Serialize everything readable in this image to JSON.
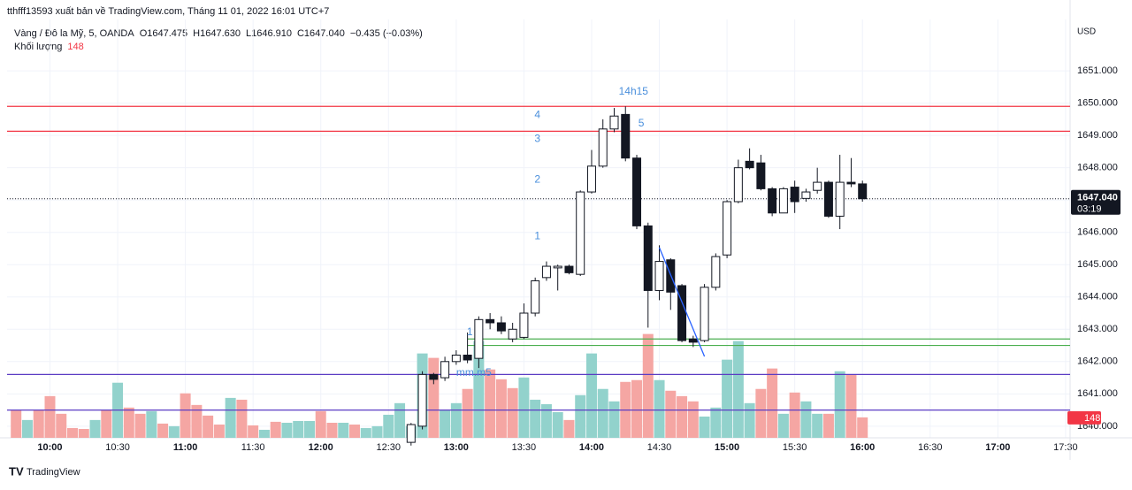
{
  "header": {
    "publisher": "tthfff13593 xuất bản về TradingView.com, Tháng 11 01, 2022 16:01 UTC+7",
    "symbol": "Vàng / Đô la Mỹ, 5, OANDA",
    "open": "O1647.475",
    "high": "H1647.630",
    "low": "L1646.910",
    "close": "C1647.040",
    "change": "−0.435 (−0.03%)",
    "volume_name": "Khối lượng",
    "currency": "USD"
  },
  "footer": {
    "brand": "TradingView"
  },
  "chart_data": {
    "type": "candlestick",
    "xlim": [
      "09:41",
      "17:32"
    ],
    "xticks": [
      "10:00",
      "10:30",
      "11:00",
      "11:30",
      "12:00",
      "12:30",
      "13:00",
      "13:30",
      "14:00",
      "14:30",
      "15:00",
      "15:30",
      "16:00",
      "16:30",
      "17:00",
      "17:30"
    ],
    "ylim": [
      1639.64,
      1652.59
    ],
    "yticks": [
      {
        "value": 1640,
        "label": "1640.000"
      },
      {
        "value": 1641,
        "label": "1641.000"
      },
      {
        "value": 1642,
        "label": "1642.000"
      },
      {
        "value": 1643,
        "label": "1643.000"
      },
      {
        "value": 1644,
        "label": "1644.000"
      },
      {
        "value": 1645,
        "label": "1645.000"
      },
      {
        "value": 1646,
        "label": "1646.000"
      },
      {
        "value": 1647,
        "label": "1647.000"
      },
      {
        "value": 1648,
        "label": "1648.000"
      },
      {
        "value": 1649,
        "label": "1649.000"
      },
      {
        "value": 1650,
        "label": "1650.000"
      },
      {
        "value": 1651,
        "label": "1651.000"
      }
    ],
    "grid": true,
    "up_color": "#ffffff",
    "down_color": "#131722",
    "wick_color": "#131722",
    "candles": {
      "x": [
        "12:40",
        "12:45",
        "12:50",
        "12:55",
        "13:00",
        "13:05",
        "13:10",
        "13:15",
        "13:20",
        "13:25",
        "13:30",
        "13:35",
        "13:40",
        "13:45",
        "13:50",
        "13:55",
        "14:00",
        "14:05",
        "14:10",
        "14:15",
        "14:20",
        "14:25",
        "14:30",
        "14:35",
        "14:40",
        "14:45",
        "14:50",
        "14:55",
        "15:00",
        "15:05",
        "15:10",
        "15:15",
        "15:20",
        "15:25",
        "15:30",
        "15:35",
        "15:40",
        "15:45",
        "15:50",
        "15:55",
        "16:00"
      ],
      "open": [
        1639.5,
        1640.0,
        1641.6,
        1641.5,
        1642.0,
        1642.2,
        1642.1,
        1643.3,
        1643.2,
        1642.7,
        1642.75,
        1643.5,
        1644.6,
        1644.9,
        1644.95,
        1644.7,
        1647.25,
        1648.05,
        1649.2,
        1649.65,
        1648.3,
        1646.2,
        1644.2,
        1645.15,
        1644.35,
        1642.7,
        1642.65,
        1644.3,
        1645.3,
        1646.95,
        1648.2,
        1648.15,
        1647.35,
        1646.6,
        1647.4,
        1647.05,
        1647.3,
        1647.55,
        1646.5,
        1647.55,
        1647.5
      ],
      "high": [
        1640.1,
        1641.7,
        1641.65,
        1642.15,
        1642.35,
        1642.9,
        1643.4,
        1643.5,
        1643.4,
        1643.2,
        1643.8,
        1644.6,
        1645.1,
        1645.0,
        1645.0,
        1647.3,
        1648.55,
        1649.5,
        1649.85,
        1649.9,
        1648.4,
        1646.3,
        1645.6,
        1645.2,
        1644.4,
        1642.8,
        1644.4,
        1645.35,
        1647.0,
        1648.25,
        1648.6,
        1648.4,
        1647.4,
        1647.4,
        1647.6,
        1647.35,
        1648.0,
        1647.6,
        1648.4,
        1648.3,
        1647.6
      ],
      "low": [
        1639.4,
        1639.9,
        1641.3,
        1641.4,
        1641.9,
        1641.95,
        1641.8,
        1643.0,
        1642.85,
        1642.6,
        1642.7,
        1643.4,
        1644.5,
        1644.2,
        1644.7,
        1644.65,
        1647.2,
        1648.0,
        1649.1,
        1648.2,
        1646.1,
        1643.05,
        1643.9,
        1643.6,
        1642.6,
        1642.45,
        1642.6,
        1644.2,
        1645.2,
        1646.9,
        1647.95,
        1647.3,
        1646.5,
        1646.6,
        1646.6,
        1646.95,
        1647.2,
        1646.45,
        1646.1,
        1647.4,
        1646.95
      ],
      "close": [
        1640.05,
        1641.6,
        1641.45,
        1642.0,
        1642.2,
        1642.05,
        1643.3,
        1643.2,
        1642.95,
        1643.0,
        1643.5,
        1644.5,
        1644.95,
        1644.95,
        1644.75,
        1647.25,
        1648.05,
        1649.2,
        1649.6,
        1648.3,
        1646.2,
        1644.2,
        1645.1,
        1644.15,
        1642.65,
        1642.6,
        1644.3,
        1645.25,
        1646.95,
        1648.0,
        1648.0,
        1647.35,
        1646.6,
        1647.35,
        1646.95,
        1647.25,
        1647.55,
        1646.5,
        1647.55,
        1647.5,
        1647.04
      ]
    },
    "volume": {
      "ylim": [
        0,
        3030
      ],
      "up_color": "#92d2cc",
      "down_color": "#f5a6a3",
      "x": [
        "09:45",
        "09:50",
        "09:55",
        "10:00",
        "10:05",
        "10:10",
        "10:15",
        "10:20",
        "10:25",
        "10:30",
        "10:35",
        "10:40",
        "10:45",
        "10:50",
        "10:55",
        "11:00",
        "11:05",
        "11:10",
        "11:15",
        "11:20",
        "11:25",
        "11:30",
        "11:35",
        "11:40",
        "11:45",
        "11:50",
        "11:55",
        "12:00",
        "12:05",
        "12:10",
        "12:15",
        "12:20",
        "12:25",
        "12:30",
        "12:35",
        "12:40",
        "12:45",
        "12:50",
        "12:55",
        "13:00",
        "13:05",
        "13:10",
        "13:15",
        "13:20",
        "13:25",
        "13:30",
        "13:35",
        "13:40",
        "13:45",
        "13:50",
        "13:55",
        "14:00",
        "14:05",
        "14:10",
        "14:15",
        "14:20",
        "14:25",
        "14:30",
        "14:35",
        "14:40",
        "14:45",
        "14:50",
        "14:55",
        "15:00",
        "15:05",
        "15:10",
        "15:15",
        "15:20",
        "15:25",
        "15:30",
        "15:35",
        "15:40",
        "15:45",
        "15:50",
        "15:55",
        "16:00"
      ],
      "values": [
        199,
        129,
        199,
        302,
        174,
        71,
        64,
        129,
        199,
        399,
        219,
        174,
        193,
        103,
        84,
        322,
        238,
        161,
        96,
        289,
        276,
        90,
        58,
        116,
        109,
        122,
        122,
        193,
        109,
        109,
        96,
        71,
        84,
        167,
        251,
        84,
        611,
        579,
        199,
        251,
        354,
        701,
        495,
        424,
        360,
        437,
        276,
        244,
        186,
        129,
        309,
        611,
        354,
        264,
        405,
        418,
        752,
        418,
        341,
        302,
        264,
        154,
        219,
        566,
        701,
        251,
        354,
        502,
        174,
        328,
        264,
        174,
        174,
        482,
        457,
        148
      ],
      "up": [
        false,
        true,
        false,
        false,
        false,
        false,
        false,
        true,
        false,
        true,
        false,
        false,
        true,
        false,
        true,
        false,
        false,
        false,
        false,
        true,
        false,
        false,
        true,
        false,
        true,
        true,
        true,
        false,
        false,
        true,
        false,
        true,
        true,
        true,
        true,
        true,
        true,
        false,
        true,
        true,
        false,
        true,
        false,
        false,
        false,
        true,
        true,
        true,
        true,
        false,
        true,
        true,
        true,
        true,
        false,
        false,
        false,
        true,
        false,
        false,
        false,
        true,
        true,
        true,
        true,
        true,
        false,
        false,
        true,
        false,
        true,
        true,
        false,
        true,
        false,
        false
      ]
    },
    "levels": [
      {
        "value": 1649.9,
        "color": "#f23645"
      },
      {
        "value": 1649.13,
        "color": "#f23645"
      },
      {
        "value": 1642.7,
        "color": "#4caf50",
        "start": "13:05"
      },
      {
        "value": 1642.5,
        "color": "#4caf50",
        "start": "13:05"
      },
      {
        "value": 1641.6,
        "color": "#5b3cc4"
      },
      {
        "value": 1640.5,
        "color": "#5b3cc4"
      }
    ],
    "trend_line": {
      "x": [
        "14:30",
        "14:50"
      ],
      "y": [
        1645.53,
        1642.16
      ],
      "color": "#2962ff"
    },
    "annotations": [
      {
        "text": "14h15",
        "x": "14:12",
        "y": 1650.35
      },
      {
        "text": "4",
        "x": "13:36",
        "y": 1649.63
      },
      {
        "text": "3",
        "x": "13:36",
        "y": 1648.89
      },
      {
        "text": "2",
        "x": "13:36",
        "y": 1647.63
      },
      {
        "text": "1",
        "x": "13:36",
        "y": 1645.88
      },
      {
        "text": "5",
        "x": "14:22",
        "y": 1649.36
      },
      {
        "text": "1",
        "x": "13:06",
        "y": 1642.9
      },
      {
        "text": "mm.m5",
        "x": "13:00",
        "y": 1641.64
      }
    ],
    "last_price": {
      "value": 1647.04,
      "label": "1647.040",
      "countdown": "03:19"
    },
    "last_volume": 148
  }
}
